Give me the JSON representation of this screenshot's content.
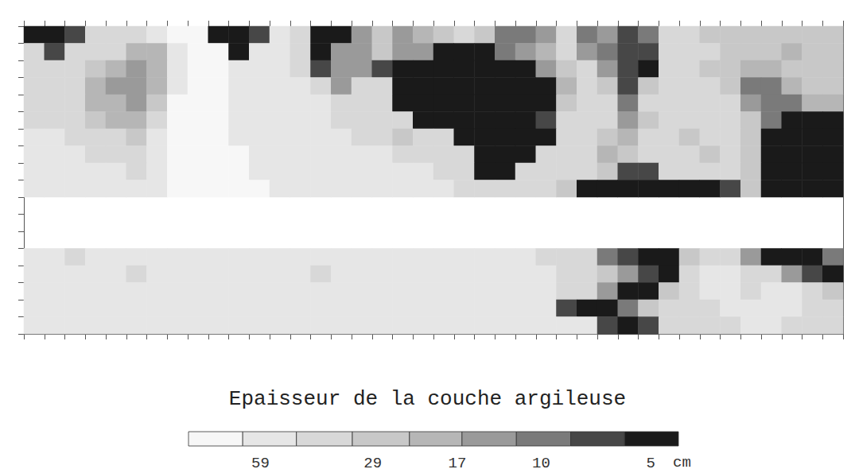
{
  "chart_data": {
    "type": "heatmap",
    "title": "Epaisseur de la couche argileuse",
    "tick_labels": false,
    "grid": false,
    "log": true,
    "cells": [
      [
        5,
        5,
        7,
        40,
        40,
        40,
        55,
        80,
        80,
        5,
        5,
        7,
        55,
        40,
        5,
        5,
        14,
        28,
        14,
        20,
        28,
        40,
        28,
        10,
        10,
        14,
        40,
        10,
        14,
        7,
        10,
        40,
        40,
        28,
        28,
        28,
        28,
        28,
        28,
        28
      ],
      [
        40,
        7,
        40,
        40,
        40,
        20,
        20,
        55,
        80,
        80,
        5,
        55,
        55,
        40,
        5,
        14,
        14,
        28,
        14,
        14,
        5,
        5,
        5,
        10,
        14,
        20,
        40,
        14,
        10,
        7,
        7,
        40,
        40,
        40,
        28,
        28,
        28,
        20,
        28,
        28
      ],
      [
        40,
        40,
        40,
        28,
        20,
        14,
        20,
        55,
        80,
        80,
        55,
        55,
        55,
        40,
        7,
        14,
        14,
        7,
        5,
        5,
        5,
        5,
        5,
        5,
        5,
        14,
        28,
        40,
        14,
        7,
        5,
        40,
        40,
        28,
        28,
        20,
        20,
        28,
        28,
        28
      ],
      [
        40,
        40,
        40,
        20,
        14,
        14,
        20,
        55,
        80,
        80,
        55,
        55,
        55,
        55,
        40,
        14,
        40,
        40,
        5,
        5,
        5,
        5,
        5,
        5,
        5,
        5,
        20,
        40,
        28,
        7,
        28,
        40,
        40,
        40,
        28,
        10,
        10,
        20,
        28,
        28
      ],
      [
        40,
        40,
        40,
        20,
        20,
        14,
        28,
        80,
        80,
        80,
        55,
        55,
        55,
        55,
        55,
        40,
        40,
        40,
        5,
        5,
        5,
        5,
        5,
        5,
        5,
        5,
        28,
        40,
        40,
        10,
        40,
        40,
        40,
        40,
        40,
        14,
        10,
        10,
        20,
        20
      ],
      [
        40,
        40,
        40,
        28,
        20,
        20,
        40,
        80,
        80,
        80,
        55,
        55,
        55,
        55,
        55,
        40,
        40,
        40,
        40,
        5,
        5,
        5,
        5,
        5,
        5,
        7,
        40,
        40,
        40,
        14,
        28,
        40,
        40,
        40,
        40,
        28,
        10,
        5,
        5,
        5
      ],
      [
        55,
        55,
        40,
        40,
        40,
        28,
        55,
        80,
        80,
        80,
        55,
        55,
        55,
        55,
        55,
        55,
        40,
        40,
        28,
        40,
        40,
        5,
        5,
        5,
        5,
        5,
        40,
        40,
        28,
        20,
        40,
        40,
        28,
        40,
        40,
        28,
        5,
        5,
        5,
        5
      ],
      [
        55,
        55,
        55,
        40,
        40,
        40,
        55,
        80,
        80,
        80,
        80,
        55,
        55,
        55,
        55,
        55,
        55,
        55,
        40,
        40,
        40,
        40,
        5,
        5,
        5,
        40,
        40,
        40,
        20,
        28,
        40,
        40,
        40,
        28,
        40,
        28,
        5,
        5,
        5,
        5
      ],
      [
        55,
        55,
        55,
        55,
        55,
        40,
        55,
        80,
        80,
        80,
        80,
        55,
        55,
        55,
        55,
        55,
        55,
        55,
        55,
        55,
        40,
        40,
        5,
        5,
        40,
        40,
        40,
        40,
        28,
        7,
        7,
        40,
        40,
        40,
        40,
        28,
        5,
        5,
        5,
        5
      ],
      [
        55,
        55,
        55,
        55,
        55,
        55,
        55,
        80,
        80,
        80,
        80,
        80,
        55,
        55,
        55,
        55,
        55,
        55,
        55,
        55,
        55,
        40,
        40,
        40,
        40,
        40,
        28,
        5,
        5,
        5,
        5,
        5,
        5,
        5,
        7,
        28,
        5,
        5,
        5,
        5
      ],
      null,
      null,
      null,
      [
        55,
        55,
        40,
        55,
        55,
        55,
        55,
        55,
        55,
        55,
        55,
        55,
        55,
        55,
        55,
        55,
        55,
        55,
        55,
        55,
        55,
        55,
        55,
        55,
        55,
        40,
        40,
        40,
        10,
        7,
        5,
        5,
        28,
        40,
        40,
        14,
        5,
        5,
        5,
        10
      ],
      [
        55,
        55,
        55,
        55,
        55,
        40,
        55,
        55,
        55,
        55,
        55,
        55,
        55,
        55,
        40,
        55,
        55,
        55,
        55,
        55,
        55,
        55,
        55,
        55,
        55,
        55,
        40,
        40,
        28,
        14,
        7,
        5,
        40,
        55,
        55,
        40,
        40,
        14,
        7,
        5
      ],
      [
        55,
        55,
        55,
        55,
        55,
        55,
        55,
        55,
        55,
        55,
        55,
        55,
        55,
        55,
        55,
        55,
        55,
        55,
        55,
        55,
        55,
        55,
        55,
        55,
        55,
        55,
        40,
        40,
        14,
        5,
        5,
        28,
        40,
        55,
        55,
        40,
        55,
        55,
        40,
        28
      ],
      [
        55,
        55,
        55,
        55,
        55,
        55,
        55,
        55,
        55,
        55,
        55,
        55,
        55,
        55,
        55,
        55,
        55,
        55,
        55,
        55,
        55,
        55,
        55,
        55,
        55,
        55,
        7,
        5,
        5,
        10,
        28,
        40,
        40,
        40,
        55,
        55,
        55,
        55,
        40,
        40
      ],
      [
        55,
        55,
        55,
        55,
        55,
        55,
        55,
        55,
        55,
        55,
        55,
        55,
        55,
        55,
        55,
        55,
        55,
        55,
        55,
        55,
        55,
        55,
        55,
        55,
        55,
        55,
        55,
        55,
        7,
        5,
        7,
        40,
        40,
        40,
        40,
        55,
        55,
        40,
        40,
        40
      ]
    ],
    "colorbar": {
      "range": [
        4.2,
        93
      ],
      "ticks": [
        59,
        29,
        17,
        10,
        5
      ],
      "bounds": [
        93,
        66,
        47,
        33,
        23,
        16.5,
        11.7,
        8.3,
        5.9,
        4.2
      ],
      "colors": [
        "#f7f7f7",
        "#e6e6e6",
        "#d8d8d8",
        "#c8c8c8",
        "#b6b6b6",
        "#9a9a9a",
        "#7a7a7a",
        "#474747",
        "#1a1a1a"
      ],
      "unit": "cm"
    }
  }
}
